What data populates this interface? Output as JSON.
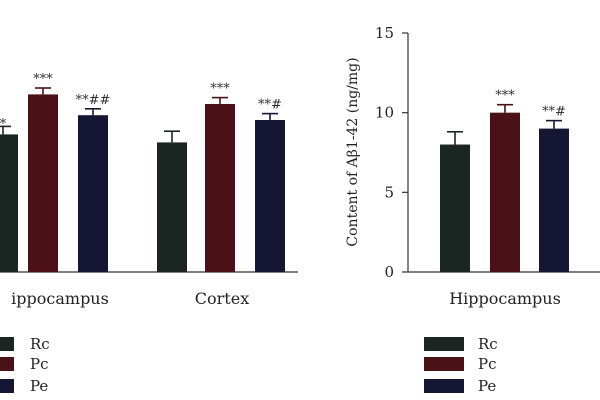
{
  "chart_data": [
    {
      "type": "bar",
      "title": "",
      "xlabel": "",
      "ylabel": "",
      "categories": [
        "Hippocampus",
        "Cortex"
      ],
      "category_labels_visible": [
        "ippocampus",
        "Cortex"
      ],
      "series": [
        {
          "name": "Rc",
          "color": "#1b2622",
          "values": [
            8.6,
            8.1
          ],
          "errors": [
            0.5,
            0.7
          ]
        },
        {
          "name": "Pc",
          "color": "#4a1216",
          "values": [
            11.1,
            10.5
          ],
          "errors": [
            0.4,
            0.4
          ]
        },
        {
          "name": "Pe",
          "color": "#141634",
          "values": [
            9.8,
            9.5
          ],
          "errors": [
            0.4,
            0.4
          ]
        }
      ],
      "annotations": [
        {
          "category": "Hippocampus",
          "series": "Pc",
          "text": "***"
        },
        {
          "category": "Hippocampus",
          "series": "Pe",
          "text": "**##"
        },
        {
          "category": "Cortex",
          "series": "Pc",
          "text": "***"
        },
        {
          "category": "Cortex",
          "series": "Pe",
          "text": "**#"
        }
      ],
      "rc_label_partial": "*",
      "legend": [
        "Rc",
        "Pc",
        "Pe"
      ],
      "legend_position": "bottom-left"
    },
    {
      "type": "bar",
      "title": "",
      "xlabel": "",
      "ylabel": "Content of Aβ1-42 (ng/mg)",
      "ylim": [
        0,
        15
      ],
      "yticks": [
        "0",
        "5",
        "10",
        "15"
      ],
      "categories": [
        "Hippocampus"
      ],
      "series": [
        {
          "name": "Rc",
          "color": "#1b2622",
          "values": [
            8.0
          ],
          "errors": [
            0.8
          ]
        },
        {
          "name": "Pc",
          "color": "#4a1216",
          "values": [
            10.0
          ],
          "errors": [
            0.5
          ]
        },
        {
          "name": "Pe",
          "color": "#141634",
          "values": [
            9.0
          ],
          "errors": [
            0.5
          ]
        }
      ],
      "annotations": [
        {
          "category": "Hippocampus",
          "series": "Pc",
          "text": "***"
        },
        {
          "category": "Hippocampus",
          "series": "Pe",
          "text": "**#"
        }
      ],
      "legend": [
        "Rc",
        "Pc",
        "Pe"
      ],
      "legend_position": "bottom-left"
    }
  ]
}
